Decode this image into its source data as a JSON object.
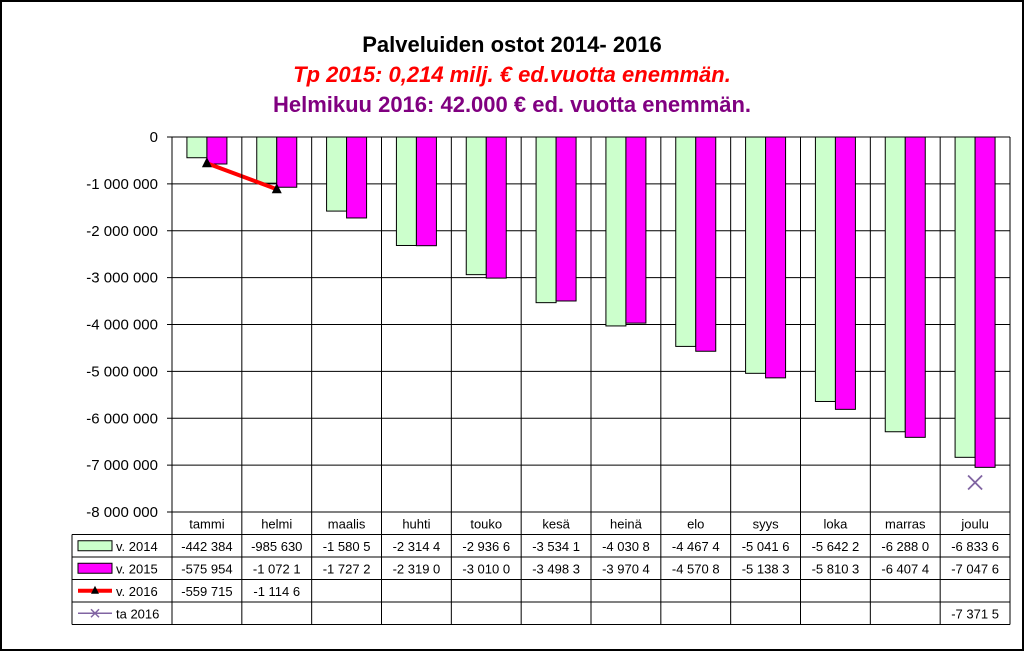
{
  "titles": {
    "line1": "Palveluiden ostot 2014- 2016",
    "line2": "Tp 2015: 0,214 milj. € ed.vuotta enemmän.",
    "line3": "Helmikuu 2016: 42.000 € ed. vuotta enemmän."
  },
  "colors": {
    "v2014": "#ccffcc",
    "v2015": "#ff00ff",
    "v2016": "#ff0000",
    "ta2016": "#8064a2",
    "title2": "#ff0000",
    "title3": "#800080"
  },
  "chart_data": {
    "type": "bar",
    "title": "Palveluiden ostot 2014- 2016",
    "categories": [
      "tammi",
      "helmi",
      "maalis",
      "huhti",
      "touko",
      "kesä",
      "heinä",
      "elo",
      "syys",
      "loka",
      "marras",
      "joulu"
    ],
    "ylim": [
      -8000000,
      0
    ],
    "yticks": [
      0,
      -1000000,
      -2000000,
      -3000000,
      -4000000,
      -5000000,
      -6000000,
      -7000000,
      -8000000
    ],
    "ytick_labels": [
      "0",
      "-1 000 000",
      "-2 000 000",
      "-3 000 000",
      "-4 000 000",
      "-5 000 000",
      "-6 000 000",
      "-7 000 000",
      "-8 000 000"
    ],
    "grid": true,
    "legend": "data table below chart",
    "series": [
      {
        "name": "v. 2014",
        "kind": "bar",
        "values": [
          -442384,
          -985630,
          -1580500,
          -2314400,
          -2936600,
          -3534100,
          -4030800,
          -4467400,
          -5041600,
          -5642200,
          -6288000,
          -6833600
        ],
        "table_labels": [
          "-442 384",
          "-985 630",
          "-1 580 5",
          "-2 314 4",
          "-2 936 6",
          "-3 534 1",
          "-4 030 8",
          "-4 467 4",
          "-5 041 6",
          "-5 642 2",
          "-6 288 0",
          "-6 833 6"
        ]
      },
      {
        "name": "v. 2015",
        "kind": "bar",
        "values": [
          -575954,
          -1072100,
          -1727200,
          -2319000,
          -3010000,
          -3498300,
          -3970400,
          -4570800,
          -5138300,
          -5810300,
          -6407400,
          -7047600
        ],
        "table_labels": [
          "-575 954",
          "-1 072 1",
          "-1 727 2",
          "-2 319 0",
          "-3 010 0",
          "-3 498 3",
          "-3 970 4",
          "-4 570 8",
          "-5 138 3",
          "-5 810 3",
          "-6 407 4",
          "-7 047 6"
        ]
      },
      {
        "name": "v. 2016",
        "kind": "line",
        "values": [
          -559715,
          -1114600,
          null,
          null,
          null,
          null,
          null,
          null,
          null,
          null,
          null,
          null
        ],
        "table_labels": [
          "-559 715",
          "-1 114 6",
          "",
          "",
          "",
          "",
          "",
          "",
          "",
          "",
          "",
          ""
        ]
      },
      {
        "name": "ta 2016",
        "kind": "marker",
        "values": [
          null,
          null,
          null,
          null,
          null,
          null,
          null,
          null,
          null,
          null,
          null,
          -7371500
        ],
        "table_labels": [
          "",
          "",
          "",
          "",
          "",
          "",
          "",
          "",
          "",
          "",
          "",
          "-7 371 5"
        ]
      }
    ]
  }
}
